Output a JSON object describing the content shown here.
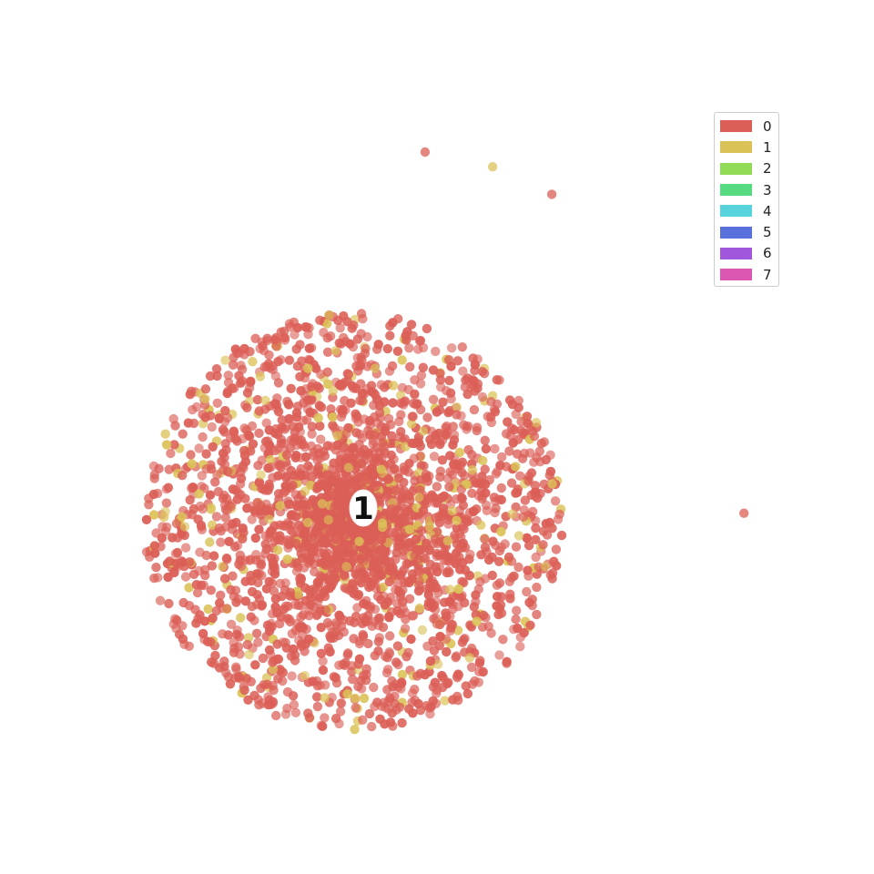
{
  "chart_data": {
    "type": "scatter",
    "title": "",
    "xlabel": "",
    "ylabel": "",
    "axes_visible": false,
    "grid": false,
    "legend_placement": "top-right",
    "categories": [
      "0",
      "1",
      "2",
      "3",
      "4",
      "5",
      "6",
      "7"
    ],
    "colors": [
      "#db5f57",
      "#dbc257",
      "#91db57",
      "#57db80",
      "#57d3db",
      "#5770db",
      "#a157db",
      "#db57b2"
    ],
    "approx_point_counts": {
      "0": 2700,
      "1": 280,
      "2": 0,
      "3": 0,
      "4": 0,
      "5": 0,
      "6": 0,
      "7": 0
    },
    "cluster": {
      "center": [
        0,
        0
      ],
      "radius": 1.0
    },
    "outliers": [
      {
        "category": "0",
        "x": 0.34,
        "y": 1.75
      },
      {
        "category": "1",
        "x": 0.66,
        "y": 1.68
      },
      {
        "category": "0",
        "x": 0.94,
        "y": 1.55
      },
      {
        "category": "0",
        "x": 1.85,
        "y": 0.04
      }
    ],
    "center_label": "1"
  }
}
